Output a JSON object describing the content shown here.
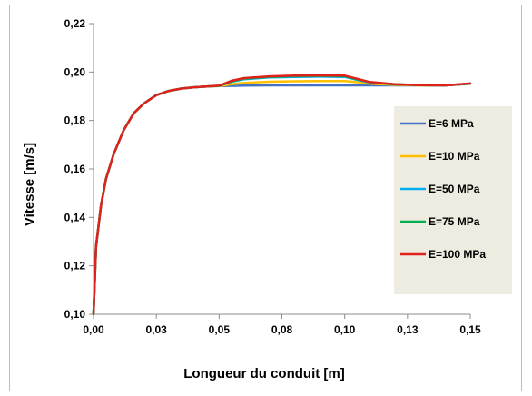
{
  "chart_data": {
    "type": "line",
    "xlabel": "Longueur du conduit  [m]",
    "ylabel": "Vitesse [m/s]",
    "xlim": [
      0,
      0.15
    ],
    "ylim": [
      0.1,
      0.22
    ],
    "x_ticks": [
      {
        "value": 0.0,
        "label": "0,00"
      },
      {
        "value": 0.025,
        "label": "0,03"
      },
      {
        "value": 0.05,
        "label": "0,05"
      },
      {
        "value": 0.075,
        "label": "0,08"
      },
      {
        "value": 0.1,
        "label": "0,10"
      },
      {
        "value": 0.125,
        "label": "0,13"
      },
      {
        "value": 0.15,
        "label": "0,15"
      }
    ],
    "y_ticks": [
      {
        "value": 0.1,
        "label": "0,10"
      },
      {
        "value": 0.12,
        "label": "0,12"
      },
      {
        "value": 0.14,
        "label": "0,14"
      },
      {
        "value": 0.16,
        "label": "0,16"
      },
      {
        "value": 0.18,
        "label": "0,18"
      },
      {
        "value": 0.2,
        "label": "0,20"
      },
      {
        "value": 0.22,
        "label": "0,22"
      }
    ],
    "grid": false,
    "legend_position": "right",
    "series": [
      {
        "name": "E=6 MPa",
        "color": "#4472C4",
        "x": [
          0,
          0.001,
          0.003,
          0.005,
          0.008,
          0.012,
          0.016,
          0.02,
          0.025,
          0.03,
          0.035,
          0.04,
          0.045,
          0.05,
          0.06,
          0.07,
          0.08,
          0.09,
          0.1,
          0.11,
          0.12,
          0.13,
          0.14,
          0.15
        ],
        "y": [
          0.1,
          0.128,
          0.145,
          0.156,
          0.166,
          0.176,
          0.183,
          0.187,
          0.1905,
          0.1922,
          0.1932,
          0.1937,
          0.194,
          0.1942,
          0.1944,
          0.1945,
          0.1945,
          0.1945,
          0.1945,
          0.1945,
          0.1945,
          0.1945,
          0.1945,
          0.1952
        ]
      },
      {
        "name": "E=10 MPa",
        "color": "#FFC000",
        "x": [
          0,
          0.001,
          0.003,
          0.005,
          0.008,
          0.012,
          0.016,
          0.02,
          0.025,
          0.03,
          0.035,
          0.04,
          0.045,
          0.05,
          0.055,
          0.06,
          0.07,
          0.08,
          0.09,
          0.1,
          0.105,
          0.11,
          0.12,
          0.13,
          0.14,
          0.15
        ],
        "y": [
          0.1,
          0.128,
          0.145,
          0.156,
          0.166,
          0.176,
          0.183,
          0.187,
          0.1905,
          0.1922,
          0.1932,
          0.1937,
          0.194,
          0.1942,
          0.195,
          0.1955,
          0.196,
          0.1962,
          0.1963,
          0.1963,
          0.1958,
          0.1952,
          0.1947,
          0.1945,
          0.1945,
          0.1952
        ]
      },
      {
        "name": "E=50 MPa",
        "color": "#00B0F0",
        "x": [
          0,
          0.001,
          0.003,
          0.005,
          0.008,
          0.012,
          0.016,
          0.02,
          0.025,
          0.03,
          0.035,
          0.04,
          0.045,
          0.05,
          0.055,
          0.06,
          0.07,
          0.08,
          0.09,
          0.1,
          0.105,
          0.11,
          0.12,
          0.13,
          0.14,
          0.15
        ],
        "y": [
          0.1,
          0.128,
          0.145,
          0.156,
          0.166,
          0.176,
          0.183,
          0.187,
          0.1905,
          0.1922,
          0.1932,
          0.1937,
          0.194,
          0.1943,
          0.196,
          0.197,
          0.1978,
          0.198,
          0.1981,
          0.198,
          0.1968,
          0.1957,
          0.1949,
          0.1946,
          0.1945,
          0.1952
        ]
      },
      {
        "name": "E=75 MPa",
        "color": "#00B050",
        "x": [
          0,
          0.001,
          0.003,
          0.005,
          0.008,
          0.012,
          0.016,
          0.02,
          0.025,
          0.03,
          0.035,
          0.04,
          0.045,
          0.05,
          0.055,
          0.06,
          0.07,
          0.08,
          0.09,
          0.1,
          0.105,
          0.11,
          0.12,
          0.13,
          0.14,
          0.15
        ],
        "y": [
          0.1,
          0.128,
          0.145,
          0.156,
          0.166,
          0.176,
          0.183,
          0.187,
          0.1905,
          0.1922,
          0.1932,
          0.1937,
          0.194,
          0.1943,
          0.1962,
          0.1973,
          0.198,
          0.1983,
          0.1984,
          0.1983,
          0.197,
          0.1958,
          0.1949,
          0.1946,
          0.1945,
          0.1952
        ]
      },
      {
        "name": "E=100 MPa",
        "color": "#E0201B",
        "x": [
          0,
          0.001,
          0.003,
          0.005,
          0.008,
          0.012,
          0.016,
          0.02,
          0.025,
          0.03,
          0.035,
          0.04,
          0.045,
          0.05,
          0.055,
          0.06,
          0.07,
          0.08,
          0.09,
          0.1,
          0.105,
          0.11,
          0.12,
          0.13,
          0.14,
          0.15
        ],
        "y": [
          0.1,
          0.128,
          0.145,
          0.156,
          0.166,
          0.176,
          0.183,
          0.187,
          0.1905,
          0.1922,
          0.1932,
          0.1937,
          0.194,
          0.1944,
          0.1964,
          0.1975,
          0.1982,
          0.1985,
          0.1986,
          0.1985,
          0.1972,
          0.1959,
          0.195,
          0.1946,
          0.1945,
          0.1953
        ]
      }
    ]
  }
}
